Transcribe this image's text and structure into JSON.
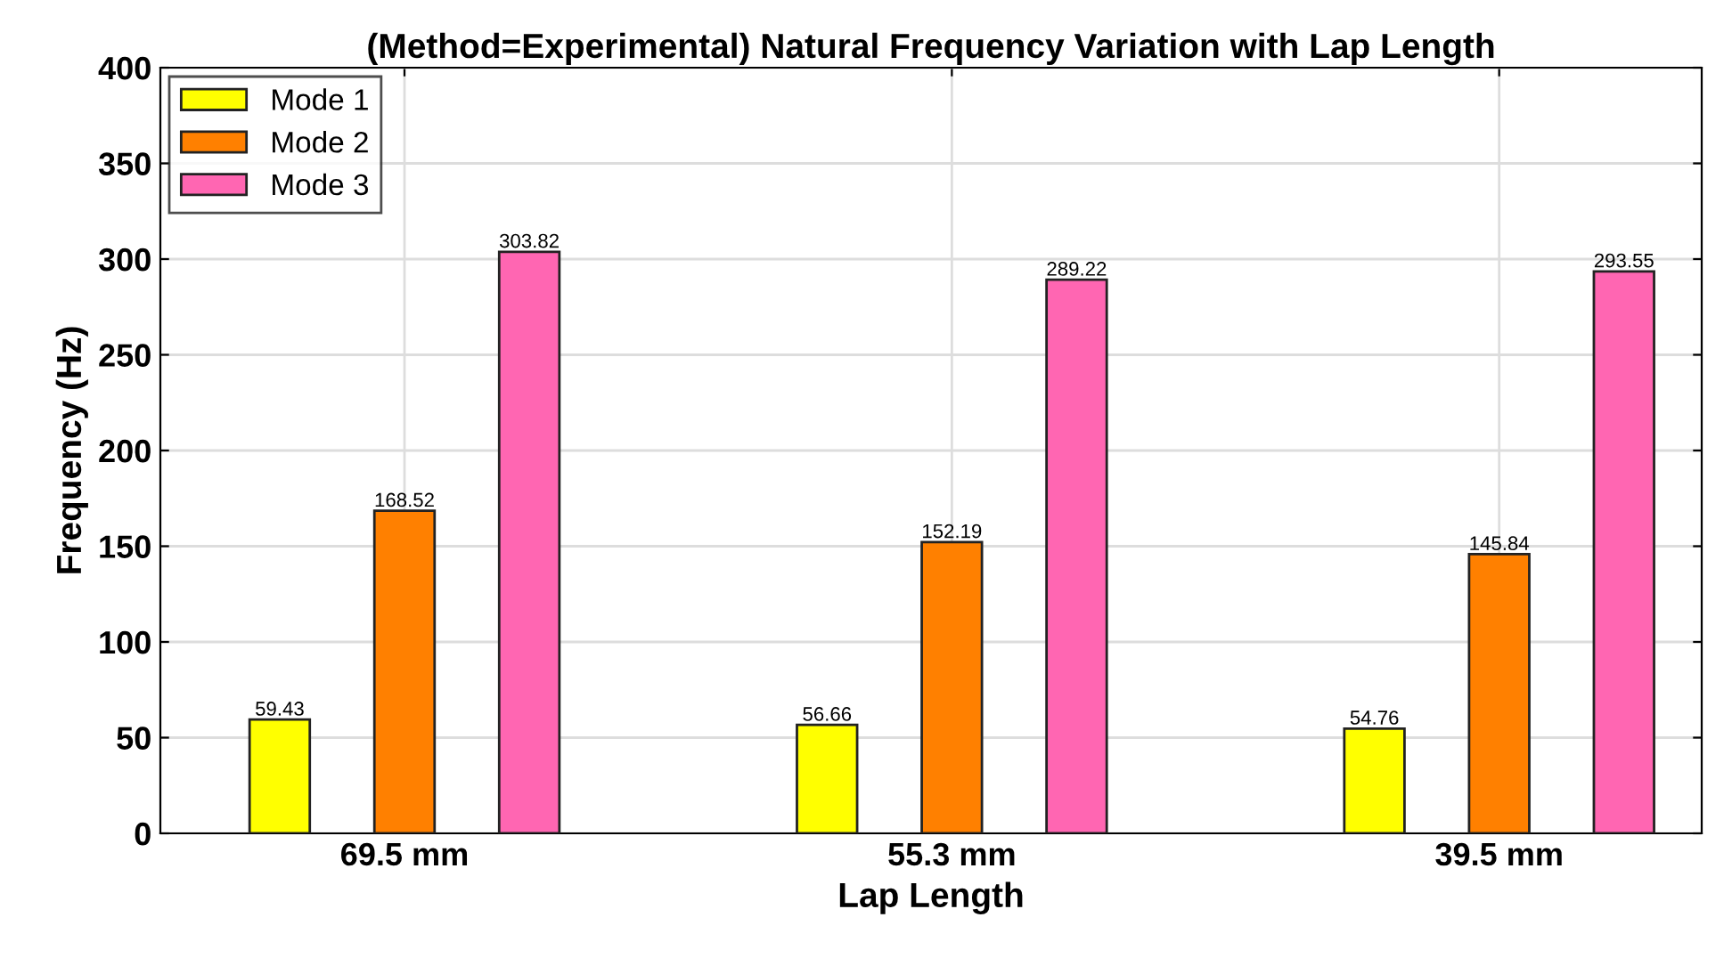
{
  "chart_data": {
    "type": "bar",
    "title": "(Method=Experimental) Natural Frequency Variation with Lap Length",
    "xlabel": "Lap Length",
    "ylabel": "Frequency (Hz)",
    "categories": [
      "69.5 mm",
      "55.3 mm",
      "39.5 mm"
    ],
    "series": [
      {
        "name": "Mode 1",
        "color": "#ffff00",
        "values": [
          59.43,
          56.66,
          54.76
        ]
      },
      {
        "name": "Mode 2",
        "color": "#ff8000",
        "values": [
          168.52,
          152.19,
          145.84
        ]
      },
      {
        "name": "Mode 3",
        "color": "#ff66b2",
        "values": [
          303.82,
          289.22,
          293.55
        ]
      }
    ],
    "ylim": [
      0,
      400
    ],
    "yticks": [
      0,
      50,
      100,
      150,
      200,
      250,
      300,
      350,
      400
    ],
    "grid": true,
    "legend": "top left",
    "data_labels": true
  }
}
